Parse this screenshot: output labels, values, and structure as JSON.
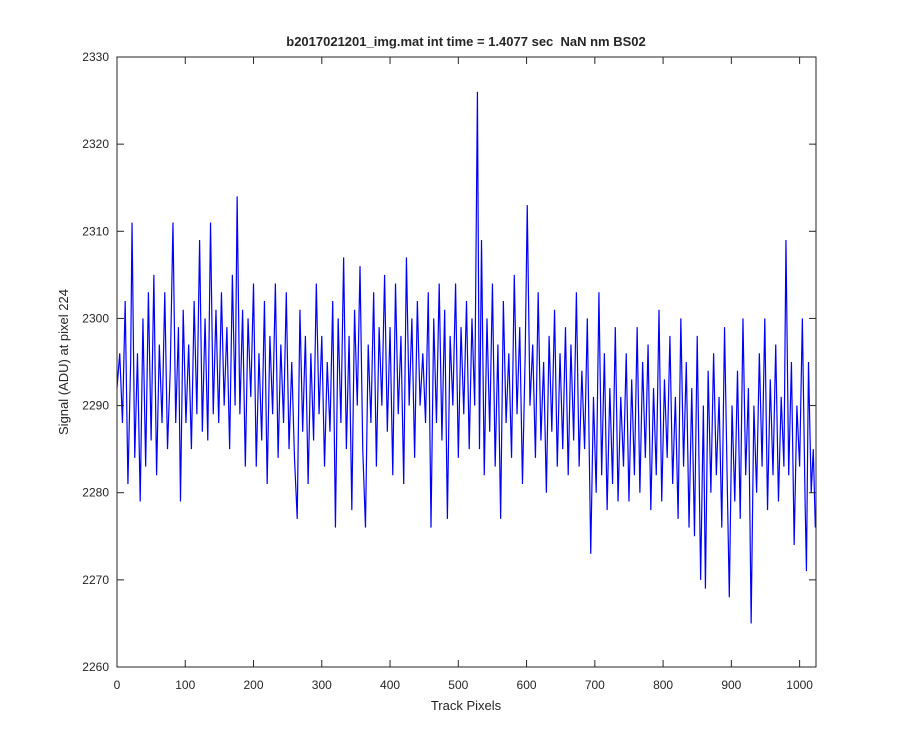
{
  "chart_data": {
    "type": "line",
    "title": "b2017021201_img.mat int time = 1.4077 sec  NaN nm BS02",
    "xlabel": "Track Pixels",
    "ylabel": "Signal (ADU) at pixel 224",
    "color": "#0000ff",
    "xlim": [
      0,
      1024
    ],
    "ylim": [
      2260,
      2330
    ],
    "xticks": [
      0,
      100,
      200,
      300,
      400,
      500,
      600,
      700,
      800,
      900,
      1000
    ],
    "yticks": [
      2260,
      2270,
      2280,
      2290,
      2300,
      2310,
      2320,
      2330
    ],
    "x": [
      0,
      4,
      8,
      12,
      16,
      20,
      22,
      26,
      30,
      34,
      38,
      42,
      46,
      50,
      54,
      58,
      62,
      66,
      70,
      74,
      78,
      82,
      86,
      90,
      93,
      97,
      101,
      105,
      109,
      113,
      117,
      121,
      125,
      129,
      133,
      137,
      141,
      145,
      149,
      153,
      157,
      161,
      165,
      169,
      173,
      176,
      180,
      184,
      188,
      192,
      196,
      200,
      204,
      208,
      212,
      216,
      220,
      224,
      228,
      232,
      236,
      240,
      244,
      248,
      252,
      256,
      260,
      264,
      268,
      272,
      276,
      280,
      284,
      288,
      292,
      296,
      300,
      304,
      308,
      312,
      316,
      320,
      324,
      328,
      332,
      336,
      340,
      344,
      348,
      352,
      356,
      360,
      364,
      368,
      372,
      376,
      380,
      384,
      388,
      392,
      396,
      400,
      404,
      408,
      412,
      416,
      420,
      424,
      428,
      432,
      436,
      440,
      444,
      448,
      452,
      456,
      460,
      464,
      468,
      472,
      476,
      480,
      484,
      488,
      492,
      496,
      500,
      504,
      508,
      512,
      516,
      520,
      524,
      528,
      531,
      534,
      538,
      542,
      546,
      550,
      554,
      558,
      562,
      566,
      570,
      574,
      578,
      582,
      586,
      590,
      594,
      598,
      601,
      605,
      609,
      613,
      617,
      621,
      625,
      629,
      633,
      637,
      641,
      645,
      649,
      653,
      657,
      661,
      665,
      669,
      673,
      677,
      681,
      685,
      689,
      694,
      698,
      702,
      706,
      710,
      714,
      718,
      722,
      726,
      730,
      734,
      738,
      742,
      746,
      750,
      754,
      758,
      762,
      766,
      770,
      774,
      778,
      782,
      786,
      790,
      794,
      798,
      802,
      806,
      810,
      814,
      818,
      822,
      826,
      830,
      834,
      838,
      842,
      846,
      850,
      855,
      859,
      862,
      866,
      870,
      874,
      878,
      882,
      886,
      890,
      894,
      897,
      901,
      905,
      909,
      913,
      917,
      921,
      925,
      929,
      933,
      937,
      941,
      945,
      949,
      953,
      957,
      961,
      965,
      969,
      973,
      977,
      980,
      984,
      988,
      992,
      996,
      1000,
      1004,
      1008,
      1010,
      1013,
      1017,
      1020,
      1023
    ],
    "values": [
      2292,
      2296,
      2288,
      2302,
      2281,
      2295,
      2311,
      2284,
      2296,
      2279,
      2300,
      2283,
      2303,
      2286,
      2305,
      2282,
      2297,
      2288,
      2303,
      2285,
      2294,
      2311,
      2288,
      2299,
      2279,
      2301,
      2288,
      2297,
      2285,
      2302,
      2289,
      2309,
      2287,
      2300,
      2286,
      2311,
      2289,
      2301,
      2288,
      2303,
      2290,
      2299,
      2285,
      2305,
      2290,
      2314,
      2289,
      2301,
      2283,
      2300,
      2291,
      2304,
      2283,
      2296,
      2286,
      2302,
      2281,
      2298,
      2289,
      2304,
      2284,
      2297,
      2288,
      2303,
      2285,
      2295,
      2284,
      2277,
      2301,
      2287,
      2298,
      2281,
      2296,
      2286,
      2304,
      2289,
      2298,
      2283,
      2295,
      2287,
      2302,
      2276,
      2300,
      2288,
      2307,
      2285,
      2298,
      2278,
      2301,
      2290,
      2306,
      2285,
      2276,
      2297,
      2288,
      2303,
      2283,
      2299,
      2290,
      2305,
      2287,
      2299,
      2282,
      2304,
      2289,
      2298,
      2281,
      2307,
      2290,
      2300,
      2284,
      2302,
      2290,
      2296,
      2288,
      2303,
      2276,
      2300,
      2288,
      2304,
      2286,
      2301,
      2277,
      2298,
      2290,
      2304,
      2284,
      2299,
      2289,
      2302,
      2285,
      2300,
      2290,
      2326,
      2285,
      2309,
      2282,
      2300,
      2287,
      2304,
      2283,
      2297,
      2277,
      2302,
      2288,
      2296,
      2284,
      2305,
      2289,
      2299,
      2281,
      2296,
      2313,
      2290,
      2297,
      2284,
      2303,
      2286,
      2295,
      2280,
      2298,
      2287,
      2301,
      2283,
      2296,
      2285,
      2299,
      2282,
      2297,
      2286,
      2303,
      2283,
      2294,
      2285,
      2300,
      2273,
      2291,
      2280,
      2303,
      2282,
      2296,
      2278,
      2292,
      2281,
      2299,
      2279,
      2291,
      2283,
      2296,
      2279,
      2293,
      2282,
      2299,
      2280,
      2295,
      2284,
      2297,
      2278,
      2292,
      2282,
      2301,
      2279,
      2293,
      2284,
      2298,
      2281,
      2291,
      2277,
      2300,
      2283,
      2295,
      2276,
      2292,
      2275,
      2298,
      2270,
      2290,
      2269,
      2294,
      2280,
      2296,
      2282,
      2291,
      2276,
      2299,
      2281,
      2268,
      2290,
      2279,
      2294,
      2277,
      2300,
      2282,
      2292,
      2265,
      2290,
      2280,
      2296,
      2283,
      2300,
      2278,
      2293,
      2282,
      2297,
      2279,
      2291,
      2283,
      2309,
      2282,
      2295,
      2274,
      2290,
      2283,
      2300,
      2279,
      2271,
      2295,
      2280,
      2285,
      2276
    ]
  }
}
